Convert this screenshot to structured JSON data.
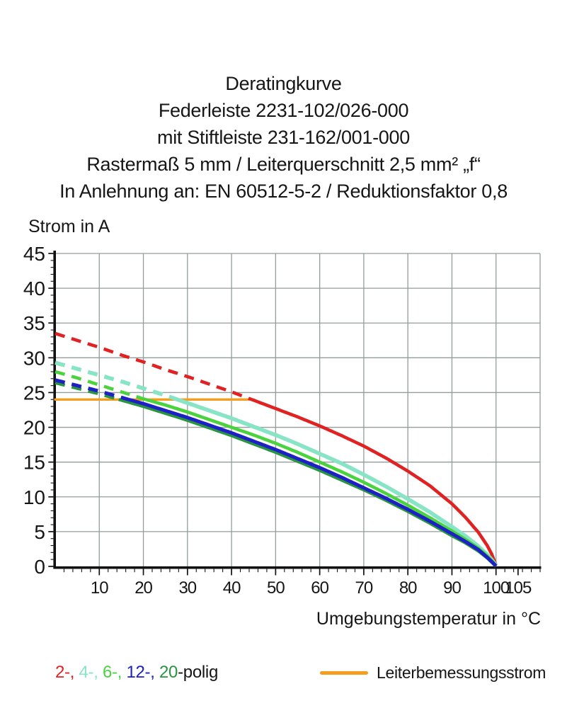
{
  "title": {
    "line1": "Deratingkurve",
    "line2": "Federleiste 2231-102/026-000",
    "line3": "mit Stiftleiste 231-162/001-000",
    "line4": "Rastermaß 5 mm / Leiterquerschnitt 2,5 mm² „f“",
    "line5": "In Anlehnung an: EN 60512-5-2 / Reduktionsfaktor 0,8"
  },
  "chart_data": {
    "type": "line",
    "ylabel": "Strom in A",
    "xlabel": "Umgebungstemperatur in °C",
    "xlim": [
      0,
      110
    ],
    "ylim": [
      0,
      45
    ],
    "grid": true,
    "x_ticks": [
      10,
      20,
      30,
      40,
      50,
      60,
      70,
      80,
      90,
      100,
      105
    ],
    "y_ticks": [
      0,
      5,
      10,
      15,
      20,
      25,
      30,
      35,
      40,
      45
    ],
    "x": [
      0,
      5,
      10,
      15,
      20,
      25,
      30,
      35,
      40,
      45,
      50,
      55,
      60,
      65,
      70,
      75,
      80,
      85,
      90,
      93,
      96,
      98,
      99,
      100
    ],
    "series": [
      {
        "name": "2-polig",
        "color": "#e02222",
        "width": 4.6,
        "dash_until_x": 44.6,
        "values": [
          33.5,
          32.5,
          31.5,
          30.4,
          29.4,
          28.3,
          27.3,
          26.2,
          25.1,
          23.9,
          22.7,
          21.5,
          20.2,
          18.8,
          17.3,
          15.6,
          13.7,
          11.6,
          9.0,
          7.1,
          4.9,
          3.0,
          1.8,
          0.2
        ]
      },
      {
        "name": "4-polig",
        "color": "#87e4c5",
        "width": 5.6,
        "dash_until_x": 27.7,
        "values": [
          29.3,
          28.4,
          27.5,
          26.6,
          25.6,
          24.6,
          23.5,
          22.4,
          21.3,
          20.1,
          18.9,
          17.6,
          16.2,
          14.8,
          13.2,
          11.5,
          9.7,
          7.8,
          5.7,
          4.4,
          2.9,
          1.7,
          1.0,
          0.15
        ]
      },
      {
        "name": "6-polig",
        "color": "#4bd33f",
        "width": 4.6,
        "dash_until_x": 20.5,
        "values": [
          28.0,
          27.1,
          26.1,
          25.1,
          24.1,
          23.2,
          22.2,
          21.1,
          20.0,
          18.9,
          17.7,
          16.4,
          15.0,
          13.6,
          12.1,
          10.5,
          8.8,
          7.0,
          5.1,
          3.9,
          2.6,
          1.5,
          0.85,
          0.1
        ]
      },
      {
        "name": "20-polig",
        "color": "#2a9540",
        "width": 4.4,
        "dash_until_x": 14.4,
        "values": [
          26.4,
          25.6,
          24.8,
          23.9,
          23.0,
          22.0,
          21.0,
          19.9,
          18.8,
          17.6,
          16.4,
          15.1,
          13.8,
          12.4,
          11.0,
          9.5,
          7.9,
          6.2,
          4.4,
          3.4,
          2.2,
          1.2,
          0.6,
          0.0
        ]
      },
      {
        "name": "12-polig",
        "color": "#1d20c4",
        "width": 5.0,
        "dash_until_x": 16.7,
        "values": [
          26.8,
          26.0,
          25.2,
          24.3,
          23.4,
          22.4,
          21.4,
          20.3,
          19.2,
          18.0,
          16.8,
          15.5,
          14.2,
          12.8,
          11.3,
          9.8,
          8.2,
          6.5,
          4.7,
          3.6,
          2.4,
          1.3,
          0.7,
          0.05
        ]
      }
    ],
    "reference_line": {
      "name": "Leiterbemessungsstrom",
      "color": "#f59d1f",
      "y": 24,
      "x_start": 0,
      "x_end": 44.5
    }
  },
  "legend": {
    "poles": [
      {
        "text": "2-, ",
        "color": "#e02222"
      },
      {
        "text": "4-, ",
        "color": "#87e4c5"
      },
      {
        "text": "6-, ",
        "color": "#4bd33f"
      },
      {
        "text": "12-, ",
        "color": "#1d20c4"
      },
      {
        "text": "20",
        "color": "#2a9540"
      }
    ],
    "suffix": "-polig",
    "reference": {
      "label": "Leiterbemessungsstrom",
      "color": "#f59d1f"
    }
  },
  "colors": {
    "grid": "#949c9c",
    "axis": "#111111"
  }
}
